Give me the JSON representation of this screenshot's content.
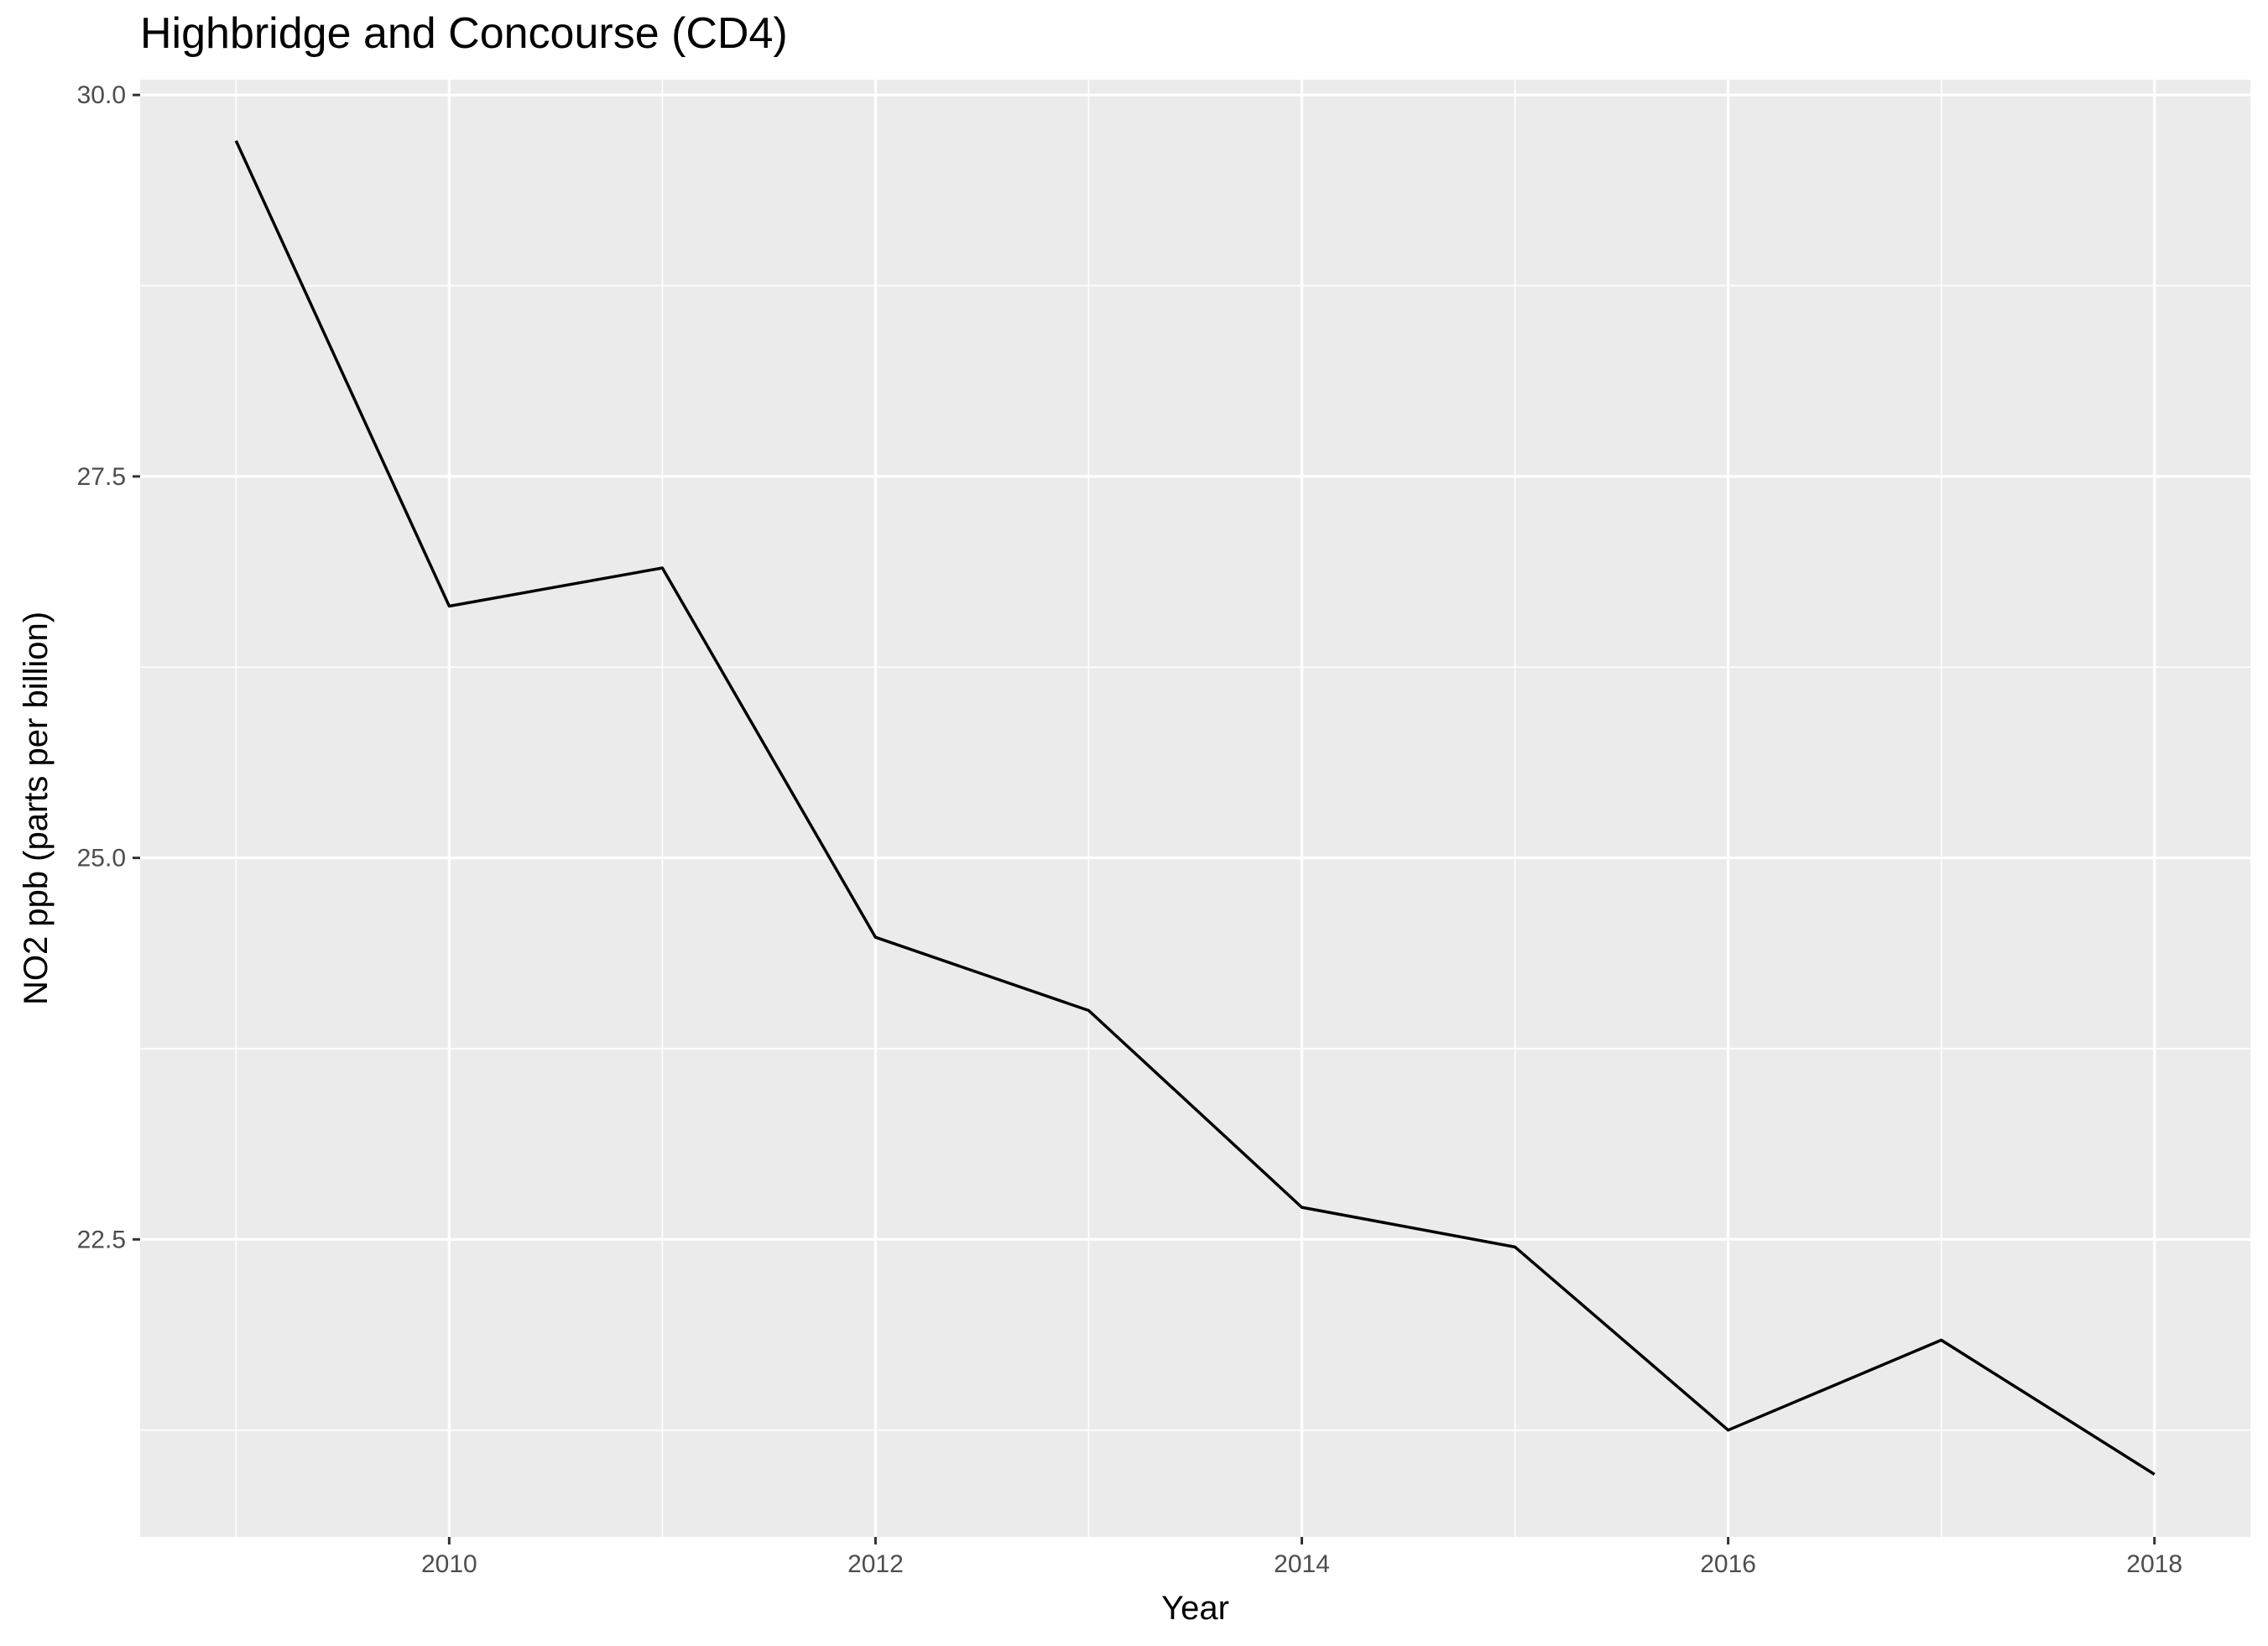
{
  "chart_data": {
    "type": "line",
    "title": "Highbridge and Concourse (CD4)",
    "xlabel": "Year",
    "ylabel": "NO2 ppb (parts per billion)",
    "x": [
      2009,
      2010,
      2011,
      2012,
      2013,
      2014,
      2015,
      2016,
      2017,
      2018
    ],
    "values": [
      29.7,
      26.65,
      26.9,
      24.48,
      24.0,
      22.71,
      22.45,
      21.25,
      21.84,
      20.96
    ],
    "x_ticks": [
      2010,
      2012,
      2014,
      2016,
      2018
    ],
    "x_tick_labels": [
      "2010",
      "2012",
      "2014",
      "2016",
      "2018"
    ],
    "y_ticks": [
      22.5,
      25.0,
      27.5,
      30.0
    ],
    "y_tick_labels": [
      "22.5",
      "25.0",
      "27.5",
      "30.0"
    ],
    "xlim": [
      2008.55,
      2018.45
    ],
    "ylim": [
      20.55,
      30.1
    ],
    "grid": true,
    "legend": "none",
    "colors": {
      "panel": "#ebebeb",
      "grid": "#ffffff",
      "line": "#000000",
      "tick_text": "#4d4d4d",
      "tick_mark": "#333333"
    }
  }
}
